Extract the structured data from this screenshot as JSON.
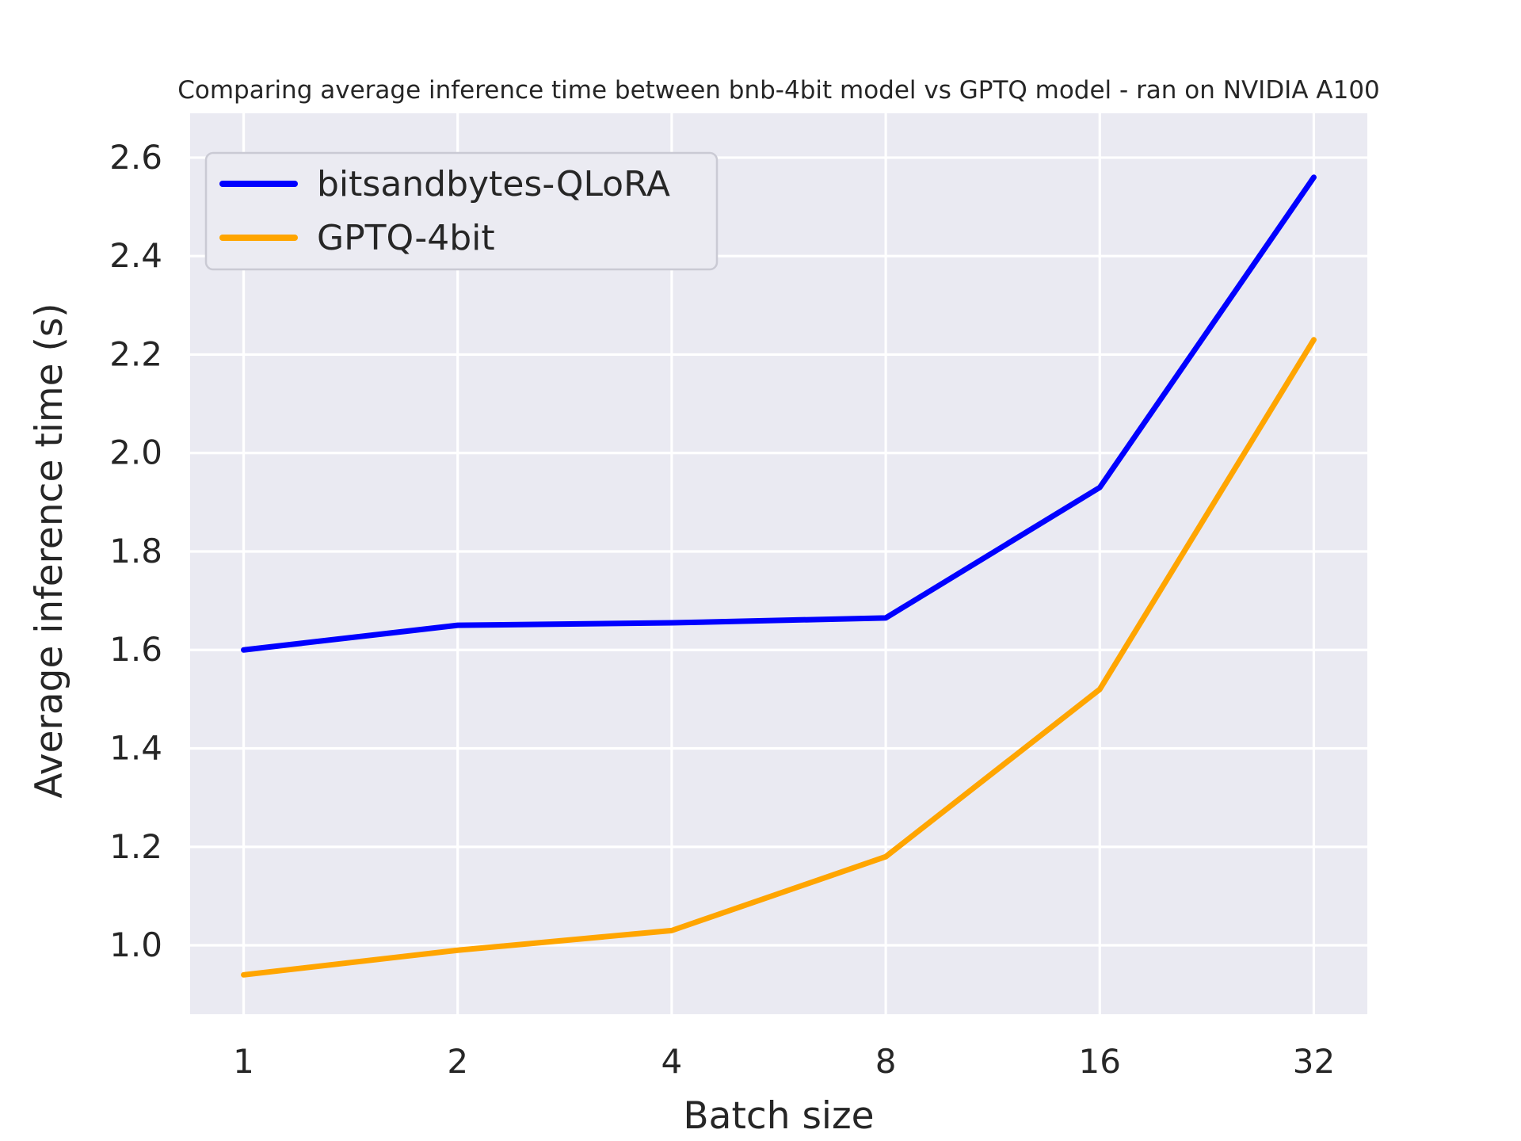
{
  "chart_data": {
    "type": "line",
    "title": "Comparing average inference time between bnb-4bit model vs GPTQ model - ran on NVIDIA A100",
    "xlabel": "Batch size",
    "ylabel": "Average inference time (s)",
    "x": [
      1,
      2,
      4,
      8,
      16,
      32
    ],
    "x_scale": "log2",
    "series": [
      {
        "name": "bitsandbytes-QLoRA",
        "color": "#0000ff",
        "values": [
          1.6,
          1.65,
          1.655,
          1.665,
          1.93,
          2.56
        ]
      },
      {
        "name": "GPTQ-4bit",
        "color": "#ffa500",
        "values": [
          0.94,
          0.99,
          1.03,
          1.18,
          1.52,
          2.23
        ]
      }
    ],
    "yticks": [
      1.0,
      1.2,
      1.4,
      1.6,
      1.8,
      2.0,
      2.2,
      2.4,
      2.6
    ],
    "xticks": [
      1,
      2,
      4,
      8,
      16,
      32
    ],
    "ylim": [
      0.86,
      2.69
    ],
    "xlim_log2": [
      -0.25,
      5.25
    ],
    "grid": true,
    "legend_position": "upper left",
    "colors": {
      "plot_bg": "#eaeaf2",
      "grid": "#ffffff",
      "text": "#262626",
      "legend_bg": "#ebebf2",
      "legend_border": "#cacad4"
    }
  }
}
